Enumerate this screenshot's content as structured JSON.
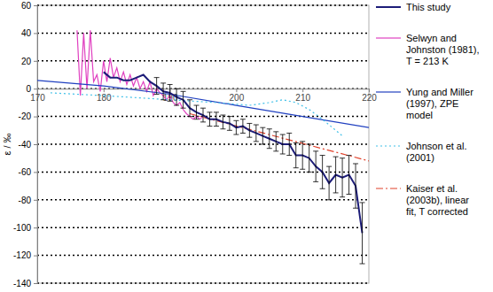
{
  "chart_data": {
    "type": "line",
    "y_label": "ε / ‰",
    "xlim": [
      170,
      220
    ],
    "xticks": [
      170,
      180,
      190,
      200,
      210,
      220
    ],
    "ylim": [
      -140,
      60
    ],
    "yticks": [
      -140,
      -120,
      -100,
      -80,
      -60,
      -40,
      -20,
      0,
      20,
      40,
      60
    ],
    "grid": true,
    "legend": "right",
    "series": [
      {
        "name": "This study",
        "color": "#1c1c78",
        "line_style": "solid",
        "x": [
          180,
          181,
          182,
          183,
          184,
          185,
          186,
          187,
          188,
          189,
          190,
          191,
          192,
          193,
          194,
          195,
          196,
          197,
          198,
          199,
          200,
          201,
          202,
          203,
          204,
          205,
          206,
          207,
          208,
          209,
          210,
          211,
          212,
          213,
          214,
          215,
          216,
          217,
          218,
          219
        ],
        "values": [
          12,
          8,
          8,
          6,
          6,
          8,
          10,
          5,
          2,
          -2,
          -3,
          -6,
          -8,
          -14,
          -17,
          -19,
          -22,
          -22,
          -24,
          -25,
          -28,
          -27,
          -30,
          -32,
          -34,
          -36,
          -38,
          -40,
          -40,
          -48,
          -48,
          -50,
          -56,
          -60,
          -68,
          -62,
          -64,
          -62,
          -70,
          -104
        ],
        "errors": [
          null,
          null,
          null,
          null,
          null,
          null,
          null,
          null,
          6,
          6,
          6,
          6,
          6,
          6,
          5,
          5,
          5,
          5,
          5,
          5,
          5,
          5,
          5,
          6,
          6,
          7,
          7,
          7,
          8,
          9,
          10,
          10,
          11,
          12,
          12,
          13,
          14,
          14,
          16,
          22
        ]
      },
      {
        "name": "Selwyn and Johnston (1981), T = 213 K",
        "color": "#e040c0",
        "line_style": "solid",
        "x": [
          176,
          176.5,
          177,
          177.5,
          178,
          178.5,
          179,
          179.5,
          180,
          180.5,
          181,
          181.5,
          182,
          182.5,
          183,
          183.5,
          184,
          184.5,
          185,
          185.5,
          186,
          186.5,
          187,
          187.5,
          188,
          188.5,
          189,
          189.5,
          190,
          190.5,
          191,
          191.5,
          192,
          192.5,
          193,
          193.5,
          194,
          194.5,
          195
        ],
        "values": [
          42,
          -5,
          40,
          0,
          42,
          5,
          10,
          -2,
          20,
          5,
          22,
          8,
          15,
          5,
          12,
          3,
          10,
          2,
          8,
          0,
          5,
          -2,
          5,
          -5,
          0,
          -3,
          -5,
          -8,
          -5,
          -10,
          -12,
          -10,
          -15,
          -18,
          -20,
          -22,
          -20,
          -22,
          -20
        ]
      },
      {
        "name": "Yung and Miller (1997), ZPE model",
        "color": "#2040c0",
        "line_style": "solid",
        "x": [
          170,
          180,
          190,
          200,
          210,
          220
        ],
        "values": [
          6,
          2,
          -4,
          -12,
          -20,
          -28
        ]
      },
      {
        "name": "Johnson et al. (2001)",
        "color": "#40c0e8",
        "line_style": "dotted",
        "x": [
          172,
          180,
          190,
          197,
          202,
          205,
          207,
          209,
          211,
          213,
          215,
          216
        ],
        "values": [
          -3,
          -5,
          -8,
          -10,
          -12,
          -10,
          -8,
          -10,
          -15,
          -22,
          -30,
          -34
        ]
      },
      {
        "name": "Kaiser et al. (2003b), linear fit, T corrected",
        "color": "#e0402a",
        "line_style": "dashdot",
        "x": [
          193,
          220
        ],
        "values": [
          -18,
          -52
        ]
      }
    ]
  }
}
